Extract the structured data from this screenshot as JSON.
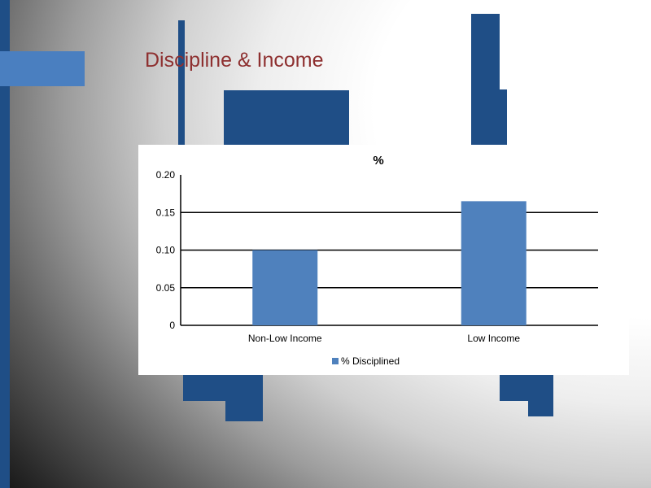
{
  "slide": {
    "title": "Discipline & Income"
  },
  "colors": {
    "title": "#8e3030",
    "decor_dark": "#1f4e86",
    "decor_light": "#4a7fc0",
    "bar": "#4f81bd"
  },
  "chart_data": {
    "type": "bar",
    "title": "%",
    "xlabel": "",
    "ylabel": "",
    "categories": [
      "Non-Low Income",
      "Low Income"
    ],
    "series": [
      {
        "name": "% Disciplined",
        "values": [
          0.1,
          0.165
        ],
        "color": "#4f81bd"
      }
    ],
    "ylim": [
      0,
      0.2
    ],
    "yticks": [
      "0",
      "0.05",
      "0.10",
      "0.15",
      "0.20"
    ],
    "gridlines": true,
    "legend_position": "bottom"
  }
}
